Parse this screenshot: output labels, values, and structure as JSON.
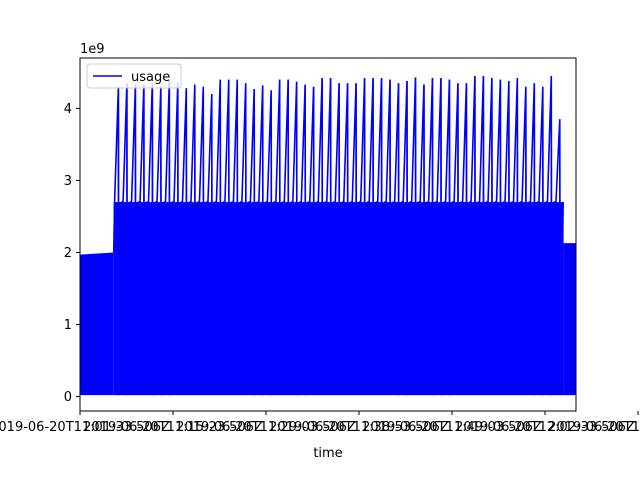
{
  "chart_data": {
    "type": "line",
    "title": "",
    "xlabel": "time",
    "ylabel": "",
    "y_offset_label": "1e9",
    "ylim": [
      -0.2,
      4.7
    ],
    "grid": false,
    "legend": {
      "placement": "top-left",
      "entries": [
        "usage"
      ]
    },
    "x_tick_labels": [
      "2019-06-20T11:01:33.506Z",
      "2019-06-20T11:15:23.506Z",
      "2019-06-20T11:29:03.506Z",
      "2019-06-20T11:38:53.506Z",
      "2019-06-20T11:49:03.506Z",
      "2019-06-20T12:02:33.506Z",
      "2019-06-20T12:15:23.506Z"
    ],
    "y_ticks": [
      0,
      1,
      2,
      3,
      4
    ],
    "series": [
      {
        "name": "usage",
        "color": "#0000ff",
        "baseline_low": 0.02,
        "segments": [
          {
            "phase": "initial",
            "fraction_start": 0.0,
            "fraction_end": 0.068,
            "level": 1.97,
            "level_end": 2.0
          },
          {
            "phase": "oscillating",
            "fraction_start": 0.068,
            "fraction_end": 0.975,
            "valley_high": 2.7,
            "peaks": [
              4.3,
              4.35,
              4.32,
              4.33,
              4.36,
              4.3,
              4.38,
              4.36,
              4.28,
              4.33,
              4.3,
              4.2,
              4.4,
              4.4,
              4.4,
              4.35,
              4.27,
              4.32,
              4.25,
              4.4,
              4.4,
              4.37,
              4.33,
              4.3,
              4.42,
              4.42,
              4.35,
              4.35,
              4.35,
              4.42,
              4.42,
              4.42,
              4.4,
              4.35,
              4.38,
              4.43,
              4.33,
              4.42,
              4.42,
              4.4,
              4.35,
              4.35,
              4.45,
              4.45,
              4.42,
              4.4,
              4.38,
              4.42,
              4.3,
              4.35,
              4.3,
              4.45,
              3.85
            ]
          },
          {
            "phase": "final",
            "fraction_start": 0.975,
            "fraction_end": 1.0,
            "level": 2.13
          }
        ]
      }
    ]
  }
}
